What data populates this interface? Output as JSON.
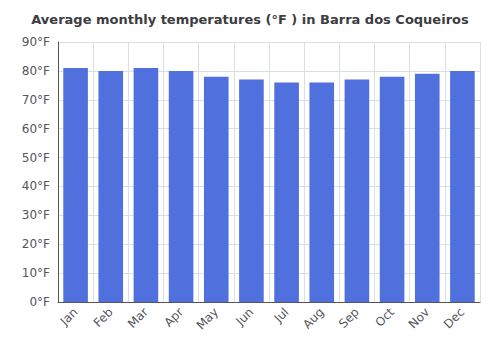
{
  "chart_data": {
    "type": "bar",
    "title": "Average monthly temperatures (°F ) in Barra dos Coqueiros",
    "categories": [
      "Jan",
      "Feb",
      "Mar",
      "Apr",
      "May",
      "Jun",
      "Jul",
      "Aug",
      "Sep",
      "Oct",
      "Nov",
      "Dec"
    ],
    "values": [
      81,
      80,
      81,
      80,
      78,
      77,
      76,
      76,
      77,
      78,
      79,
      80
    ],
    "ylim": [
      0,
      90
    ],
    "yticks": [
      {
        "value": 0,
        "label": "0°F"
      },
      {
        "value": 10,
        "label": "10°F"
      },
      {
        "value": 20,
        "label": "20°F"
      },
      {
        "value": 30,
        "label": "30°F"
      },
      {
        "value": 40,
        "label": "40°F"
      },
      {
        "value": 50,
        "label": "50°F"
      },
      {
        "value": 60,
        "label": "60°F"
      },
      {
        "value": 70,
        "label": "70°F"
      },
      {
        "value": 80,
        "label": "80°F"
      },
      {
        "value": 90,
        "label": "90°F"
      }
    ],
    "grid": true
  }
}
